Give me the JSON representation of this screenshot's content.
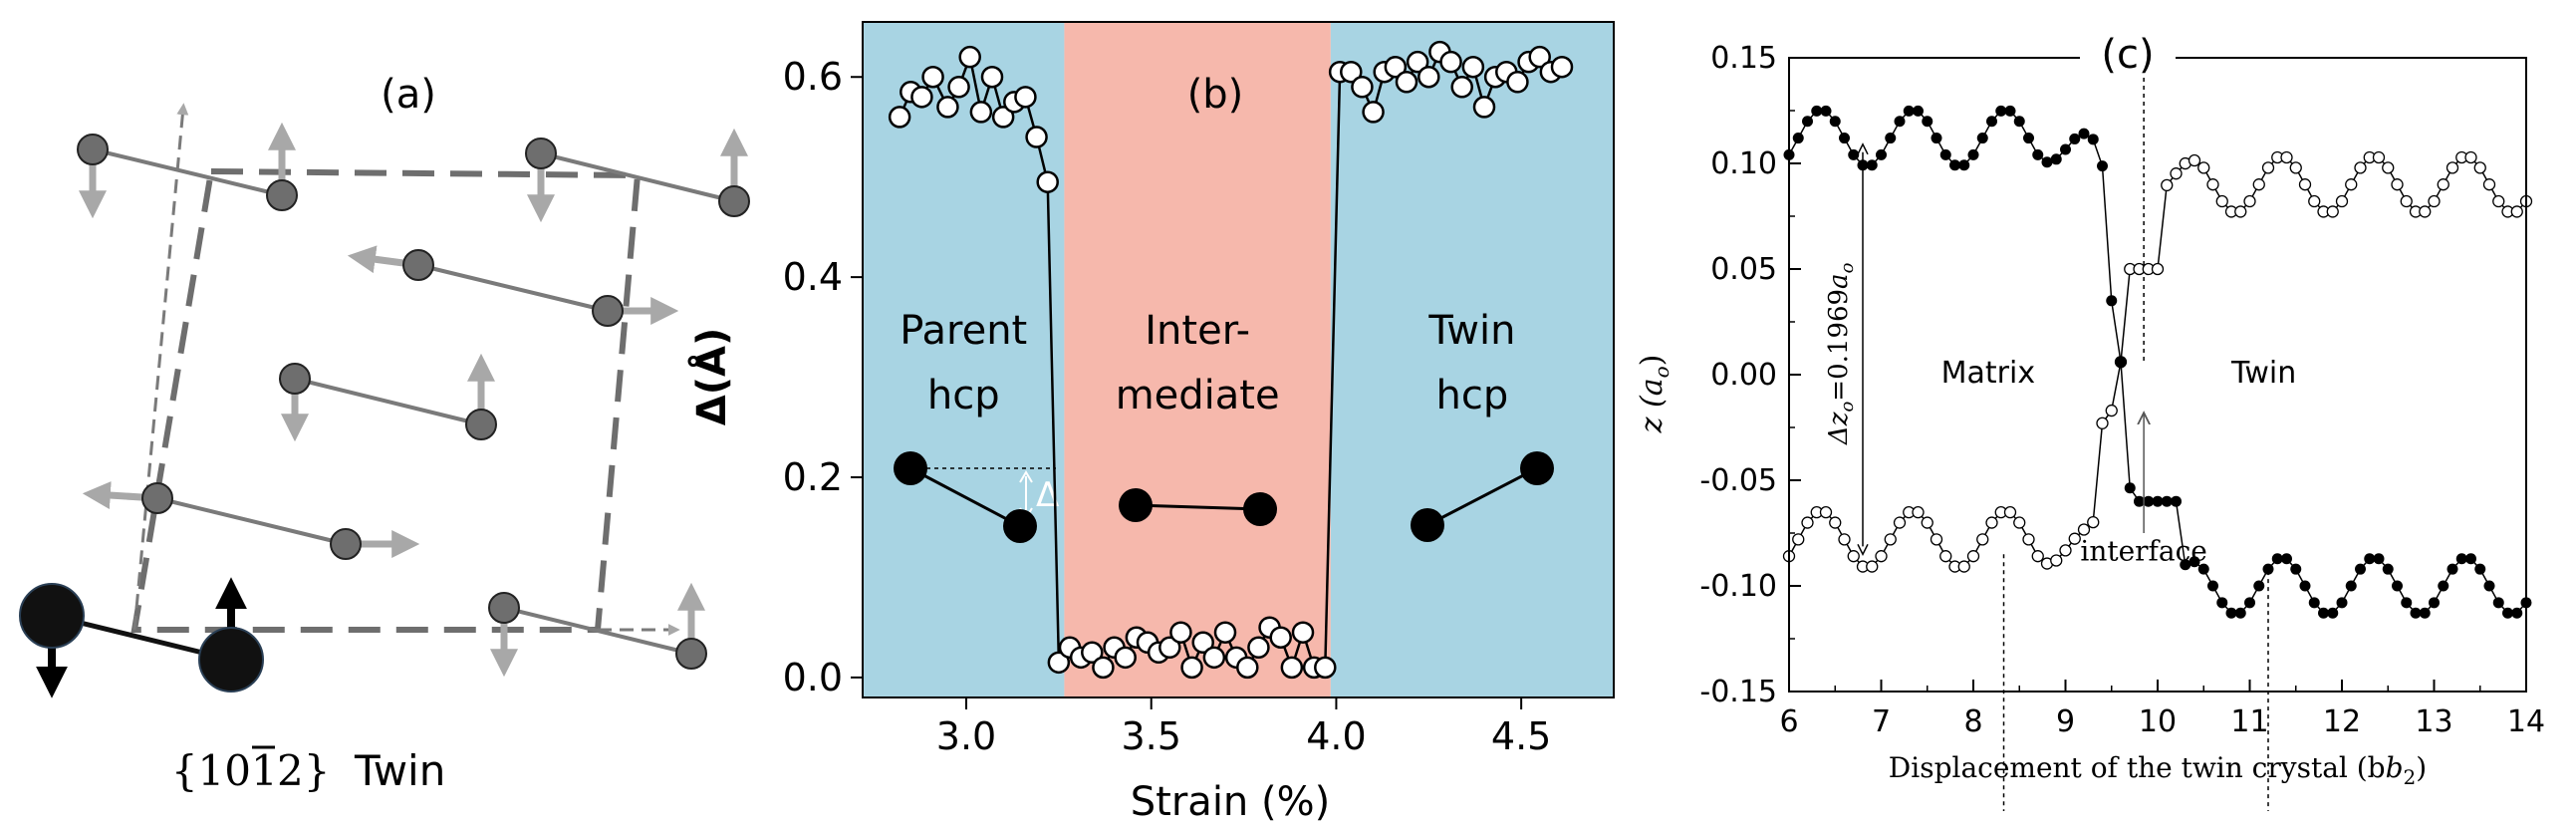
{
  "panel_a": {
    "label": "(a)",
    "caption_braces": "{10",
    "caption_bar": "1",
    "caption_tail": "2}",
    "caption_word": "Twin"
  },
  "chart_data": [
    {
      "id": "b",
      "type": "scatter",
      "panel_label": "(b)",
      "xlabel": "Strain (%)",
      "ylabel": "Δ(Å)",
      "xlim": [
        2.72,
        4.75
      ],
      "ylim": [
        -0.02,
        0.655
      ],
      "xticks": [
        3.0,
        3.5,
        4.0,
        4.5
      ],
      "xtick_labels": [
        "3.0",
        "3.5",
        "4.0",
        "4.5"
      ],
      "yticks": [
        0.0,
        0.2,
        0.4,
        0.6
      ],
      "ytick_labels": [
        "0.0",
        "0.2",
        "0.4",
        "0.6"
      ],
      "regions": [
        {
          "name": "Parent hcp",
          "line1": "Parent",
          "line2": "hcp",
          "x0": 2.72,
          "x1": 3.265,
          "color": "#a8d4e3"
        },
        {
          "name": "Intermediate",
          "line1": "Inter-",
          "line2": "mediate",
          "x0": 3.265,
          "x1": 3.985,
          "color": "#f6b8ac"
        },
        {
          "name": "Twin hcp",
          "line1": "Twin",
          "line2": "hcp",
          "x0": 3.985,
          "x1": 4.75,
          "color": "#a8d4e3"
        }
      ],
      "inset_delta_label": "Δ",
      "series": [
        {
          "name": "Δ",
          "x": [
            2.82,
            2.85,
            2.88,
            2.91,
            2.95,
            2.98,
            3.01,
            3.04,
            3.07,
            3.1,
            3.13,
            3.16,
            3.19,
            3.22,
            3.25,
            3.28,
            3.31,
            3.34,
            3.37,
            3.4,
            3.43,
            3.46,
            3.49,
            3.52,
            3.55,
            3.58,
            3.61,
            3.64,
            3.67,
            3.7,
            3.73,
            3.76,
            3.79,
            3.82,
            3.85,
            3.88,
            3.91,
            3.94,
            3.97,
            4.01,
            4.04,
            4.07,
            4.1,
            4.13,
            4.16,
            4.19,
            4.22,
            4.25,
            4.28,
            4.31,
            4.34,
            4.37,
            4.4,
            4.43,
            4.46,
            4.49,
            4.52,
            4.55,
            4.58,
            4.61
          ],
          "y": [
            0.56,
            0.585,
            0.58,
            0.6,
            0.57,
            0.59,
            0.62,
            0.565,
            0.6,
            0.56,
            0.575,
            0.58,
            0.54,
            0.495,
            0.015,
            0.03,
            0.02,
            0.025,
            0.01,
            0.03,
            0.02,
            0.04,
            0.035,
            0.025,
            0.03,
            0.045,
            0.01,
            0.035,
            0.02,
            0.045,
            0.02,
            0.01,
            0.03,
            0.05,
            0.04,
            0.01,
            0.045,
            0.01,
            0.01,
            0.605,
            0.605,
            0.59,
            0.565,
            0.605,
            0.61,
            0.595,
            0.615,
            0.6,
            0.625,
            0.615,
            0.59,
            0.61,
            0.57,
            0.6,
            0.605,
            0.595,
            0.615,
            0.62,
            0.605,
            0.61
          ]
        }
      ]
    },
    {
      "id": "c",
      "type": "scatter",
      "panel_label": "(c)",
      "xlabel": "Displacement of the twin crystal (b",
      "xlabel_sub": "2",
      "xlabel_end": ")",
      "ylabel": "z (a",
      "ylabel_sub": "o",
      "ylabel_end": ")",
      "xlim": [
        6,
        14
      ],
      "ylim": [
        -0.15,
        0.15
      ],
      "xticks": [
        6,
        7,
        8,
        9,
        10,
        11,
        12,
        13,
        14
      ],
      "xtick_labels": [
        "6",
        "7",
        "8",
        "9",
        "10",
        "11",
        "12",
        "13",
        "14"
      ],
      "yticks": [
        -0.15,
        -0.1,
        -0.05,
        0.0,
        0.05,
        0.1,
        0.15
      ],
      "ytick_labels": [
        "-0.15",
        "-0.10",
        "-0.05",
        "0.00",
        "0.05",
        "0.10",
        "0.15"
      ],
      "annotations": {
        "matrix": "Matrix",
        "twin": "Twin",
        "interface": "interface",
        "dz_prefix": "Δz",
        "dz_sub": "o",
        "dz_mid": "=0.1969",
        "dz_a": "a",
        "dz_a_sub": "o",
        "dz_x": 6.8,
        "dz_y0": -0.086,
        "dz_y1": 0.11,
        "interface_x": 9.85,
        "dashed_x": [
          8.33,
          9.85,
          11.2
        ]
      },
      "series": [
        {
          "name": "Matrix (filled)",
          "marker": "filled",
          "y_low": -0.108,
          "y_high": 0.126,
          "x_mid": 9.6,
          "w": 0.16
        },
        {
          "name": "Twin (open)",
          "marker": "open",
          "y_low": -0.086,
          "y_high": 0.102,
          "x_mid": 9.6,
          "w": 0.16
        }
      ]
    }
  ]
}
